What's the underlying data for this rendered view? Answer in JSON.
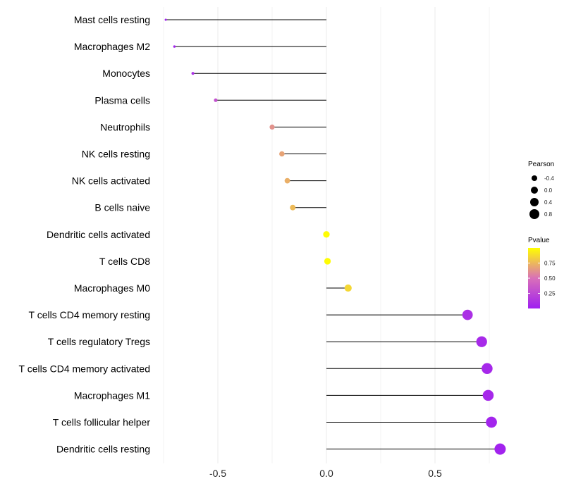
{
  "chart_data": {
    "type": "lollipop",
    "categories": [
      "Mast cells resting",
      "Macrophages M2",
      "Monocytes",
      "Plasma cells",
      "Neutrophils",
      "NK cells resting",
      "NK cells activated",
      "B cells naive",
      "Dendritic cells activated",
      "T cells CD8",
      "Macrophages M0",
      "T cells CD4 memory resting",
      "T cells regulatory  Tregs ",
      "T cells CD4 memory activated",
      "Macrophages M1",
      "T cells follicular helper",
      "Dendritic cells resting"
    ],
    "pearson": [
      -0.74,
      -0.7,
      -0.615,
      -0.51,
      -0.25,
      -0.205,
      -0.18,
      -0.155,
      0.0,
      0.005,
      0.1,
      0.65,
      0.715,
      0.74,
      0.745,
      0.76,
      0.8
    ],
    "pvalue": [
      0.02,
      0.03,
      0.1,
      0.3,
      0.62,
      0.68,
      0.72,
      0.76,
      0.99,
      0.99,
      0.86,
      0.1,
      0.06,
      0.05,
      0.05,
      0.03,
      0.02
    ],
    "xlim": [
      -0.75,
      0.85
    ],
    "x_ticks": [
      -0.5,
      0.0,
      0.5
    ],
    "x_tick_labels": [
      "-0.5",
      "0.0",
      "0.5"
    ],
    "size_legend": {
      "title": "Pearson",
      "values": [
        -0.4,
        0.0,
        0.4,
        0.8
      ],
      "labels": [
        "-0.4",
        "0.0",
        "0.4",
        "0.8"
      ]
    },
    "color_legend": {
      "title": "Pvalue",
      "ticks": [
        0.75,
        0.5,
        0.25
      ],
      "labels": [
        "0.75",
        "0.50",
        "0.25"
      ],
      "range": [
        0.0,
        1.0
      ],
      "low_color": "#a020f0",
      "mid_color": "#d970b8",
      "high_color": "#ffff00"
    },
    "grid": true
  }
}
